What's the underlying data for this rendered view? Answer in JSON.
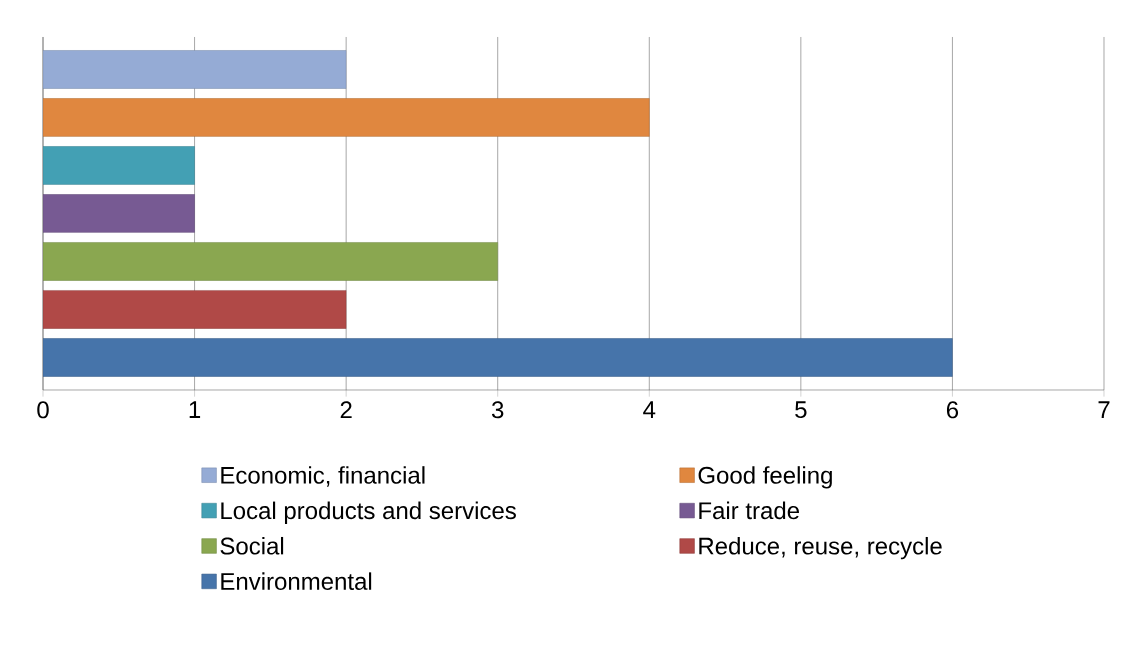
{
  "chart_data": {
    "type": "bar",
    "orientation": "horizontal",
    "categories": [
      null
    ],
    "series": [
      {
        "name": "Economic, financial",
        "color": "#95abd5",
        "values": [
          2
        ]
      },
      {
        "name": "Good feeling",
        "color": "#e0873f",
        "values": [
          4
        ]
      },
      {
        "name": "Local products and services",
        "color": "#43a0b4",
        "values": [
          1
        ]
      },
      {
        "name": "Fair trade",
        "color": "#775a93",
        "values": [
          1
        ]
      },
      {
        "name": "Social",
        "color": "#8aa750",
        "values": [
          3
        ]
      },
      {
        "name": "Reduce, reuse, recycle",
        "color": "#b04947",
        "values": [
          2
        ]
      },
      {
        "name": "Environmental",
        "color": "#4674aa",
        "values": [
          6
        ]
      }
    ],
    "xlim": [
      0,
      7
    ],
    "xticks": [
      0,
      1,
      2,
      3,
      4,
      5,
      6,
      7
    ],
    "grid": "x",
    "legend": "bottom",
    "tick_labels": "x"
  }
}
